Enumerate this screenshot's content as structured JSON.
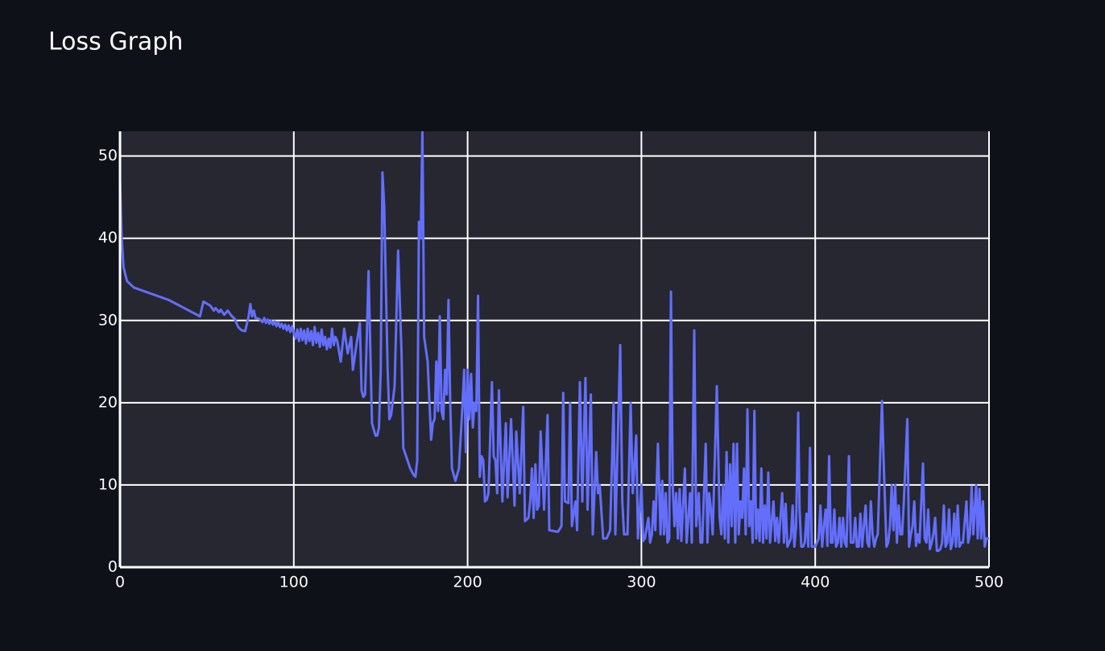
{
  "chart_data": {
    "type": "line",
    "title": "Loss Graph",
    "x": [
      0,
      1,
      2,
      4,
      8,
      28,
      46,
      48,
      52,
      54,
      55,
      57,
      58,
      60,
      62,
      64,
      66,
      68,
      70,
      72,
      74,
      75,
      76,
      77,
      78,
      80,
      82,
      83,
      84,
      85,
      86,
      87,
      88,
      89,
      90,
      91,
      92,
      93,
      94,
      95,
      96,
      97,
      98,
      99,
      100,
      101,
      102,
      103,
      104,
      105,
      106,
      107,
      108,
      109,
      110,
      111,
      112,
      113,
      114,
      115,
      116,
      117,
      118,
      119,
      120,
      121,
      122,
      123,
      124,
      125,
      127,
      129,
      131,
      133,
      134,
      136,
      138,
      139,
      140,
      141,
      142,
      143,
      145,
      147,
      148,
      149,
      150,
      151,
      152,
      154,
      155,
      156,
      158,
      160,
      162,
      163,
      167,
      169,
      170,
      171,
      172,
      173,
      174,
      175,
      177,
      179,
      180,
      181,
      182,
      183,
      184,
      185,
      186,
      187,
      188,
      189,
      190,
      191,
      193,
      195,
      197,
      198,
      199,
      200,
      201,
      202,
      203,
      204,
      205,
      206,
      207,
      208,
      209,
      210,
      211,
      212,
      214,
      215,
      216,
      217,
      218,
      220,
      222,
      223,
      225,
      227,
      228,
      230,
      232,
      233,
      235,
      236,
      237,
      238,
      239,
      240,
      241,
      242,
      244,
      246,
      247,
      252,
      254,
      255,
      256,
      258,
      259,
      260,
      262,
      263,
      264.6,
      266,
      267.8,
      269,
      270.9,
      272,
      274,
      275,
      276,
      278,
      280,
      282,
      284,
      285,
      287.8,
      289,
      290,
      292,
      293.8,
      295,
      297,
      298,
      300,
      301,
      302,
      304,
      305,
      306,
      307,
      308,
      309.5,
      311,
      312,
      313,
      314,
      315,
      316,
      317,
      318,
      319,
      320,
      321,
      322,
      323,
      325,
      326,
      328,
      329,
      330.4,
      331.5,
      333,
      334,
      335,
      337,
      338,
      339,
      340,
      341,
      343.4,
      345,
      346,
      347,
      348,
      349,
      350,
      351,
      352,
      353,
      354,
      355,
      356,
      357,
      358,
      359,
      360,
      361,
      362,
      363,
      364,
      365,
      366,
      367,
      368,
      369,
      370,
      371,
      372,
      373,
      374,
      376,
      377,
      378,
      379,
      381,
      382,
      383,
      384,
      386,
      387,
      388,
      389,
      390.2,
      391,
      392,
      393,
      394,
      395,
      396,
      397,
      398,
      400,
      401,
      402,
      403,
      404,
      405,
      406,
      407,
      408,
      409,
      410,
      411,
      412,
      413,
      414,
      415,
      416,
      417,
      418,
      419.4,
      420.5,
      422,
      423,
      424,
      425,
      426,
      427,
      429,
      430,
      431,
      432,
      433,
      434,
      435,
      436,
      438.4,
      439.5,
      441,
      442,
      443,
      444,
      445,
      446,
      447,
      448,
      449,
      450,
      451,
      453,
      454,
      455,
      456,
      457,
      458,
      459,
      460,
      462,
      463,
      464,
      465,
      466,
      467,
      468,
      469,
      470,
      471,
      472,
      473,
      474,
      475,
      476,
      477,
      478,
      479,
      480,
      481,
      482,
      483,
      484,
      485,
      487,
      488,
      489,
      490,
      491,
      492.6,
      493.5,
      494.5,
      495.5,
      496.5,
      497.5,
      498.5,
      500
    ],
    "series": [
      {
        "color": "#636efa",
        "values": [
          47,
          40,
          36.5,
          34.8,
          34,
          32.5,
          30.5,
          32.3,
          31.8,
          31.2,
          31.5,
          31,
          31.3,
          30.7,
          31.2,
          30.6,
          30.2,
          29.2,
          28.8,
          28.7,
          30.5,
          32,
          30.5,
          31.2,
          30.3,
          30.2,
          29.8,
          30.3,
          29.7,
          30.1,
          29.6,
          30,
          29.5,
          29.9,
          29.3,
          29.8,
          29.2,
          29.6,
          29,
          29.5,
          28.8,
          29.4,
          28.6,
          29.3,
          28.5,
          27.8,
          28.9,
          27.5,
          29,
          27.6,
          28.8,
          27.2,
          29,
          27.5,
          28.7,
          27,
          29.2,
          27.3,
          28.5,
          26.8,
          28.9,
          27,
          28,
          26.5,
          27.8,
          26.7,
          29,
          27,
          28,
          27.5,
          25,
          29,
          26,
          28,
          24,
          27,
          29.7,
          21.5,
          20.7,
          21,
          28,
          36,
          17.5,
          16,
          16,
          17,
          24,
          48,
          44,
          24,
          18,
          18.5,
          22,
          38.5,
          26,
          14.5,
          12,
          11.2,
          11,
          13,
          42,
          40,
          53,
          28,
          25,
          15.5,
          17.5,
          18,
          25,
          19,
          30.5,
          19,
          18,
          24,
          21,
          32.5,
          20,
          12,
          10.5,
          12,
          19.5,
          24,
          14,
          24,
          18,
          23.5,
          17,
          20,
          19,
          33,
          11,
          13.5,
          13,
          8,
          8.2,
          9,
          22.5,
          13.5,
          13,
          9,
          21.5,
          8,
          17.5,
          8.5,
          18,
          7.5,
          16.5,
          9,
          19.5,
          5.6,
          6,
          8,
          12,
          6,
          12.5,
          7,
          7.5,
          16.5,
          7,
          18.5,
          4.5,
          4.3,
          5,
          21.2,
          8,
          7.8,
          20,
          5,
          8,
          4.5,
          22.5,
          8,
          23,
          7,
          21,
          4,
          14,
          9,
          10,
          3.5,
          3.5,
          4.5,
          20,
          4,
          27,
          8,
          4,
          4,
          20,
          9,
          16,
          3.5,
          10,
          3.2,
          3.5,
          6,
          3,
          4,
          8,
          4.5,
          15,
          4,
          10.5,
          4,
          9,
          3,
          3.5,
          33.5,
          10,
          5,
          9,
          3.5,
          9.5,
          3.2,
          12,
          3,
          9,
          3,
          28.8,
          5,
          9,
          3,
          3,
          15,
          3,
          9,
          7,
          4,
          22,
          6,
          4,
          10,
          3.5,
          14,
          3,
          12.5,
          5,
          15,
          3,
          15,
          4,
          8,
          6,
          12,
          4,
          19.2,
          5,
          8,
          3,
          19,
          3.5,
          7,
          3.2,
          12,
          3,
          7.5,
          3.5,
          11.5,
          3,
          8,
          3.2,
          6,
          3,
          9,
          3,
          7.7,
          2.5,
          3.5,
          7.5,
          2.5,
          5,
          18.8,
          7,
          2.5,
          2.5,
          3,
          6.5,
          2.5,
          14.5,
          2.5,
          2.5,
          3,
          3.5,
          7.5,
          2.5,
          5,
          7,
          2.6,
          13.5,
          3,
          3,
          7,
          2.5,
          3,
          6,
          2.5,
          6,
          3,
          2.5,
          13.5,
          3,
          3,
          6,
          2.5,
          2.5,
          6.5,
          2.5,
          7.5,
          3,
          2.5,
          8,
          4,
          2.5,
          3.5,
          4,
          20.2,
          12,
          2.5,
          3,
          5,
          10,
          4.5,
          10,
          3,
          7.5,
          4,
          4,
          8,
          18,
          2.5,
          4,
          5,
          8,
          2.6,
          4,
          3,
          12.6,
          3.5,
          3,
          7,
          2.2,
          3,
          4,
          6,
          2,
          2,
          2.2,
          3,
          7.5,
          2.5,
          3,
          7,
          2.2,
          3,
          6.5,
          2.5,
          7.5,
          2.5,
          3,
          3,
          8,
          3,
          4,
          9.8,
          4,
          10,
          3.5,
          9.5,
          3.5,
          8,
          2.5,
          3.5,
          3.5
        ]
      }
    ],
    "xlim": [
      0,
      500
    ],
    "ylim": [
      0,
      53
    ],
    "xticks": [
      0,
      100,
      200,
      300,
      400,
      500
    ],
    "yticks": [
      0,
      10,
      20,
      30,
      40,
      50
    ],
    "grid": true
  }
}
